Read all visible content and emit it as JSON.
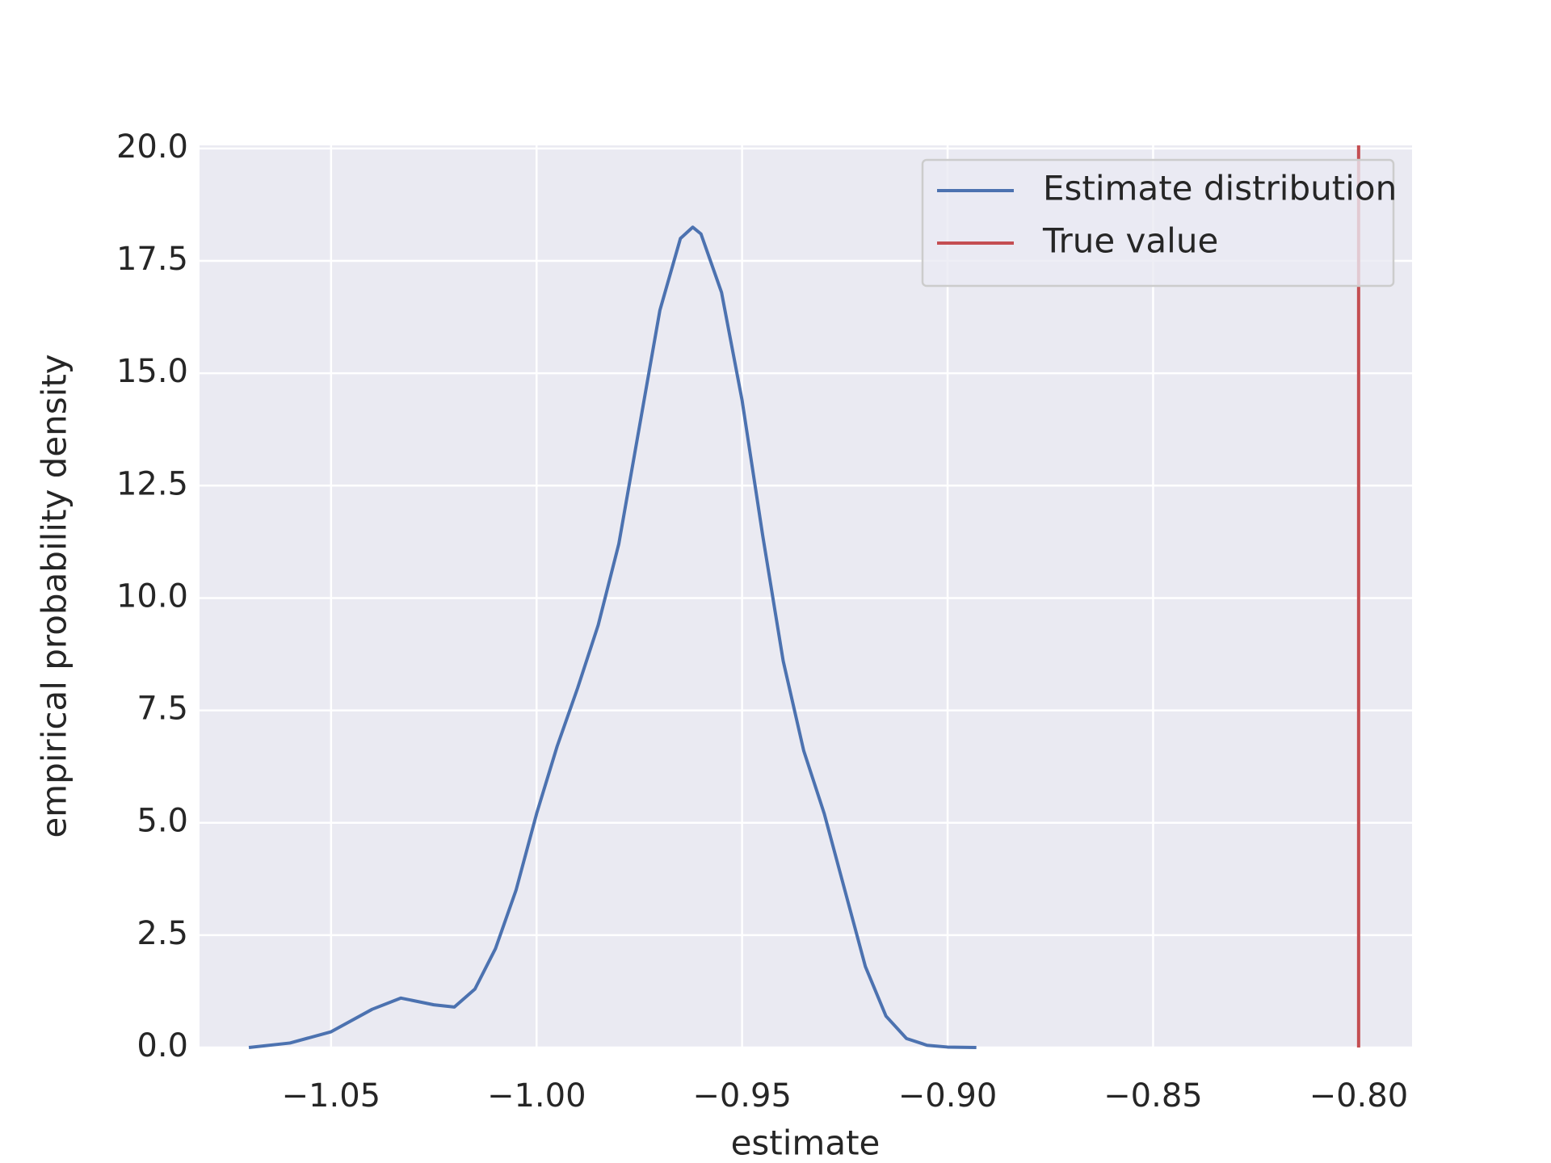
{
  "chart_data": {
    "type": "line",
    "xlabel": "estimate",
    "ylabel": "empirical probability density",
    "xlim": [
      -1.082,
      -0.787
    ],
    "ylim": [
      0,
      20.07
    ],
    "xticks": [
      {
        "value": -1.05,
        "label": "−1.05"
      },
      {
        "value": -1.0,
        "label": "−1.00"
      },
      {
        "value": -0.95,
        "label": "−0.95"
      },
      {
        "value": -0.9,
        "label": "−0.90"
      },
      {
        "value": -0.85,
        "label": "−0.85"
      },
      {
        "value": -0.8,
        "label": "−0.80"
      }
    ],
    "yticks": [
      {
        "value": 0,
        "label": "0.0"
      },
      2.5,
      {
        "value": 5,
        "label": "5.0"
      },
      7.5,
      {
        "value": 10,
        "label": "10.0"
      },
      12.5,
      {
        "value": 15,
        "label": "15.0"
      },
      17.5,
      {
        "value": 20,
        "label": "20.0"
      }
    ],
    "grid": true,
    "legend": "upper right",
    "series": [
      {
        "name": "Estimate distribution",
        "color": "#4c72b0",
        "x": [
          -1.07,
          -1.06,
          -1.05,
          -1.04,
          -1.033,
          -1.025,
          -1.02,
          -1.015,
          -1.01,
          -1.005,
          -1.0,
          -0.995,
          -0.99,
          -0.985,
          -0.98,
          -0.975,
          -0.97,
          -0.965,
          -0.962,
          -0.96,
          -0.955,
          -0.95,
          -0.945,
          -0.94,
          -0.935,
          -0.93,
          -0.925,
          -0.92,
          -0.915,
          -0.91,
          -0.905,
          -0.9,
          -0.893
        ],
        "values": [
          0,
          0.1,
          0.35,
          0.85,
          1.1,
          0.95,
          0.9,
          1.3,
          2.2,
          3.5,
          5.2,
          6.7,
          8.0,
          9.4,
          11.2,
          13.8,
          16.4,
          18.0,
          18.25,
          18.1,
          16.8,
          14.4,
          11.4,
          8.6,
          6.6,
          5.2,
          3.5,
          1.8,
          0.7,
          0.2,
          0.05,
          0.01,
          0
        ]
      },
      {
        "name": "True value",
        "color": "#c44e52",
        "vline": -0.8
      }
    ]
  }
}
